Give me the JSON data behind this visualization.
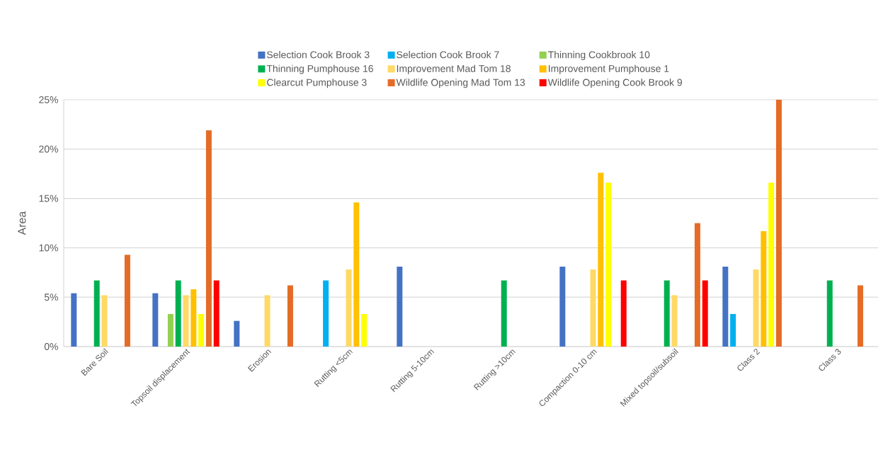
{
  "chart_data": {
    "type": "bar",
    "ylabel": "Area",
    "categories": [
      "Bare Soil",
      "Topsoil displacement",
      "Erosion",
      "Rutting <5cm",
      "Rutting 5-10cm",
      "Rutting >10cm",
      "Compaction 0-10 cm",
      "Mixed topsoil/subsoil",
      "Class 2",
      "Class 3"
    ],
    "series": [
      {
        "name": "Selection  Cook Brook 3",
        "color": "#4472c4",
        "values": [
          5.4,
          5.4,
          2.6,
          null,
          8.1,
          null,
          8.1,
          null,
          8.1,
          null
        ]
      },
      {
        "name": "Selection  Cook Brook 7",
        "color": "#00b0f0",
        "values": [
          null,
          null,
          null,
          6.7,
          null,
          null,
          null,
          null,
          3.3,
          null
        ]
      },
      {
        "name": "Thinning Cookbrook 10",
        "color": "#92d050",
        "values": [
          null,
          3.3,
          null,
          null,
          null,
          null,
          null,
          null,
          null,
          null
        ]
      },
      {
        "name": "Thinning Pumphouse 16",
        "color": "#00b050",
        "values": [
          6.7,
          6.7,
          null,
          null,
          null,
          6.7,
          null,
          6.7,
          null,
          6.7
        ]
      },
      {
        "name": "Improvement  Mad Tom 18",
        "color": "#ffd966",
        "values": [
          5.2,
          5.2,
          5.2,
          7.8,
          null,
          null,
          7.8,
          5.2,
          7.8,
          null
        ]
      },
      {
        "name": "Improvement  Pumphouse 1",
        "color": "#ffc000",
        "values": [
          null,
          5.8,
          null,
          14.6,
          null,
          null,
          17.6,
          null,
          11.7,
          null
        ]
      },
      {
        "name": "Clearcut  Pumphouse 3",
        "color": "#ffff00",
        "values": [
          null,
          3.3,
          null,
          3.3,
          null,
          null,
          16.6,
          null,
          16.6,
          null
        ]
      },
      {
        "name": "Wildlife Opening  Mad Tom 13",
        "color": "#e46c26",
        "values": [
          9.3,
          21.9,
          6.2,
          null,
          null,
          null,
          null,
          12.5,
          25,
          6.2
        ]
      },
      {
        "name": "Wildlife Opening  Cook Brook 9",
        "color": "#ff0000",
        "values": [
          null,
          6.7,
          null,
          null,
          null,
          null,
          6.7,
          6.7,
          null,
          null
        ]
      }
    ],
    "ylim": [
      0,
      25
    ],
    "yticks": [
      {
        "value": 0,
        "label": "0%"
      },
      {
        "value": 5,
        "label": "5%"
      },
      {
        "value": 10,
        "label": "10%"
      },
      {
        "value": 15,
        "label": "15%"
      },
      {
        "value": 20,
        "label": "20%"
      },
      {
        "value": 25,
        "label": "25%"
      }
    ],
    "grid": "y",
    "legend": "top"
  }
}
